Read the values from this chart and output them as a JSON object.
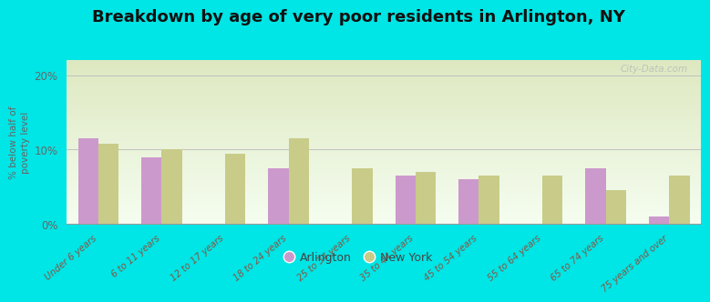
{
  "title": "Breakdown by age of very poor residents in Arlington, NY",
  "ylabel": "% below half of\npoverty level",
  "categories": [
    "Under 6 years",
    "6 to 11 years",
    "12 to 17 years",
    "18 to 24 years",
    "25 to 34 years",
    "35 to 44 years",
    "45 to 54 years",
    "55 to 64 years",
    "65 to 74 years",
    "75 years and over"
  ],
  "arlington_values": [
    11.5,
    9.0,
    0.0,
    7.5,
    0.0,
    6.5,
    6.0,
    0.0,
    7.5,
    1.0
  ],
  "newyork_values": [
    10.8,
    10.0,
    9.5,
    11.5,
    7.5,
    7.0,
    6.5,
    6.5,
    4.5,
    6.5
  ],
  "arlington_color": "#cc99cc",
  "newyork_color": "#c8cc88",
  "background_color": "#00e5e5",
  "plot_bg_top": "#dde8c0",
  "plot_bg_bottom": "#f5fdf0",
  "ylim": [
    0,
    22
  ],
  "yticks": [
    0,
    10,
    20
  ],
  "ytick_labels": [
    "0%",
    "10%",
    "20%"
  ],
  "bar_width": 0.32,
  "title_fontsize": 13,
  "legend_labels": [
    "Arlington",
    "New York"
  ],
  "watermark": "City-Data.com"
}
